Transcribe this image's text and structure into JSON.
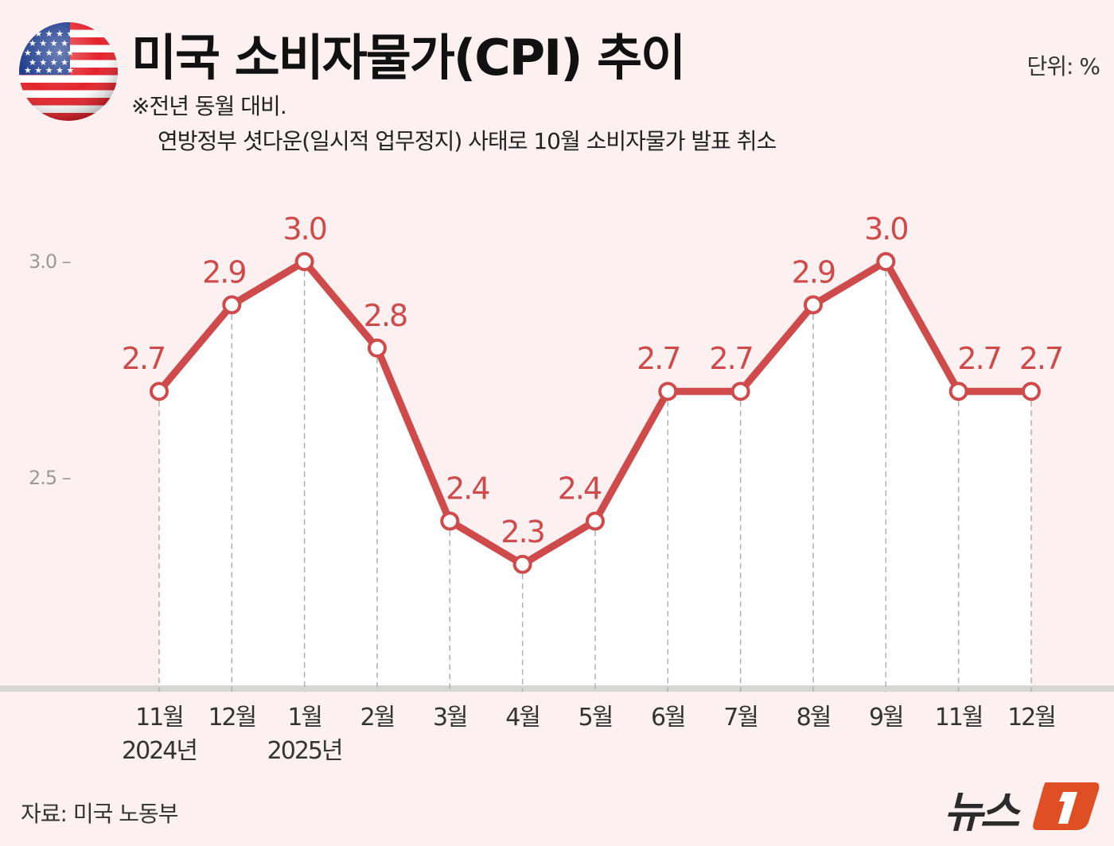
{
  "header": {
    "title": "미국 소비자물가(CPI) 추이",
    "note_1": "※전년 동월 대비.",
    "note_2": "연방정부 셧다운(일시적 업무정지) 사태로 10월 소비자물가 발표 취소",
    "unit": "단위: %",
    "flag_icon": "us-flag-icon"
  },
  "footer": {
    "source": "자료: 미국 노동부",
    "logo_text": "뉴스1",
    "logo_color": "#e04e24"
  },
  "chart_data": {
    "type": "line",
    "title": "미국 소비자물가(CPI) 추이",
    "categories": [
      "11월",
      "12월",
      "1월",
      "2월",
      "3월",
      "4월",
      "5월",
      "6월",
      "7월",
      "8월",
      "9월",
      "11월",
      "12월"
    ],
    "year_labels": [
      {
        "index": 0,
        "label": "2024년"
      },
      {
        "index": 2,
        "label": "2025년"
      }
    ],
    "series": [
      {
        "values": [
          2.7,
          2.9,
          3.0,
          2.8,
          2.4,
          2.3,
          2.4,
          2.7,
          2.7,
          2.9,
          3.0,
          2.7,
          2.7
        ],
        "color": "#cf4a4a"
      }
    ],
    "data_labels": [
      "2.7",
      "2.9",
      "3.0",
      "2.8",
      "2.4",
      "2.3",
      "2.4",
      "2.7",
      "2.7",
      "2.9",
      "3.0",
      "2.7",
      "2.7"
    ],
    "y_ticks": [
      {
        "value": 3.0,
        "label": "3.0"
      },
      {
        "value": 2.5,
        "label": "2.5"
      }
    ],
    "ylim": [
      2.0,
      3.0
    ],
    "grid": "vertical dashed lines per category",
    "legend": "none"
  }
}
